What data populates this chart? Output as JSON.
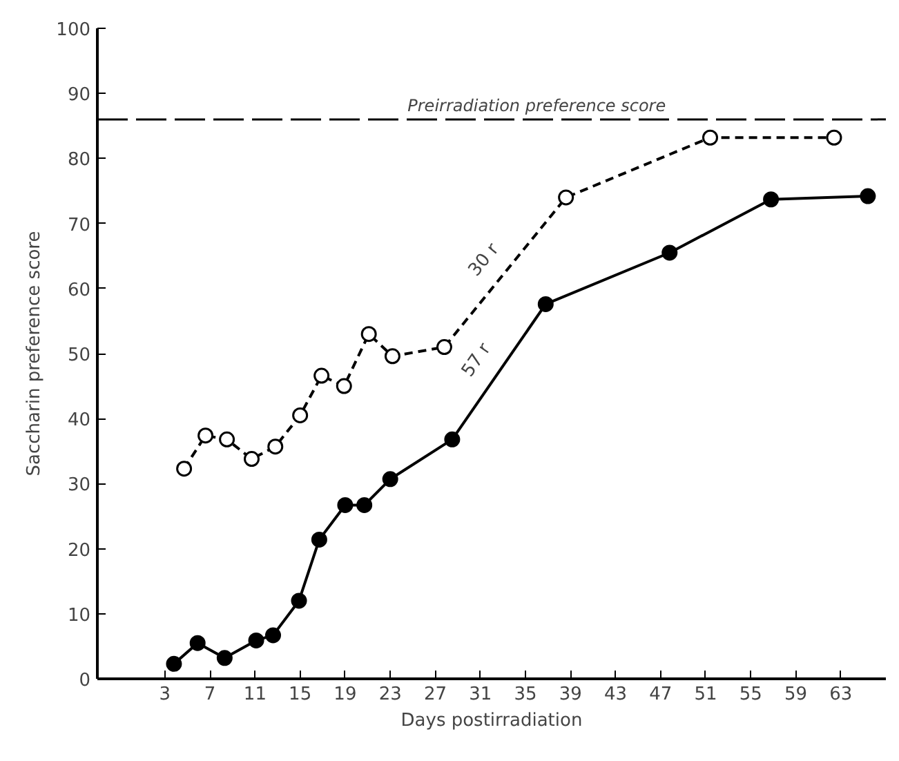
{
  "chart_data": {
    "type": "line",
    "xlabel": "Days postirradiation",
    "ylabel": "Saccharin preference score",
    "xlim": [
      -3,
      67
    ],
    "ylim": [
      0,
      100
    ],
    "xticks": [
      3,
      7,
      11,
      15,
      19,
      23,
      27,
      31,
      35,
      39,
      43,
      47,
      51,
      55,
      59,
      63
    ],
    "yticks": [
      0,
      10,
      20,
      30,
      40,
      50,
      60,
      70,
      80,
      90,
      100
    ],
    "grid": false,
    "marker": "circle",
    "ref_lines": [
      {
        "axis": "y",
        "value": 86,
        "label": "Preirradiation preference score",
        "color": "#000000",
        "line_style": "dashed"
      }
    ],
    "series": [
      {
        "name": "30 r",
        "color": "#000000",
        "line_style": "dashed",
        "x": [
          4.7,
          6.6,
          8.5,
          10.7,
          12.8,
          15.0,
          16.9,
          18.9,
          21.1,
          23.2,
          27.8,
          38.6,
          51.4,
          62.4
        ],
        "values": [
          32.3,
          37.4,
          36.8,
          33.8,
          35.7,
          40.5,
          46.6,
          45,
          53,
          49.6,
          51,
          74,
          83.2,
          83.2
        ]
      },
      {
        "name": "57 r",
        "color": "#000000",
        "line_style": "solid",
        "x": [
          3.8,
          5.9,
          8.3,
          11.1,
          12.6,
          14.9,
          16.7,
          19.0,
          20.7,
          23.0,
          28.5,
          36.8,
          47.8,
          56.8,
          65.4
        ],
        "values": [
          2.3,
          5.5,
          3.2,
          5.9,
          6.7,
          12,
          21.4,
          26.7,
          26.7,
          30.7,
          36.8,
          57.6,
          65.5,
          73.7,
          74.2
        ]
      }
    ]
  }
}
